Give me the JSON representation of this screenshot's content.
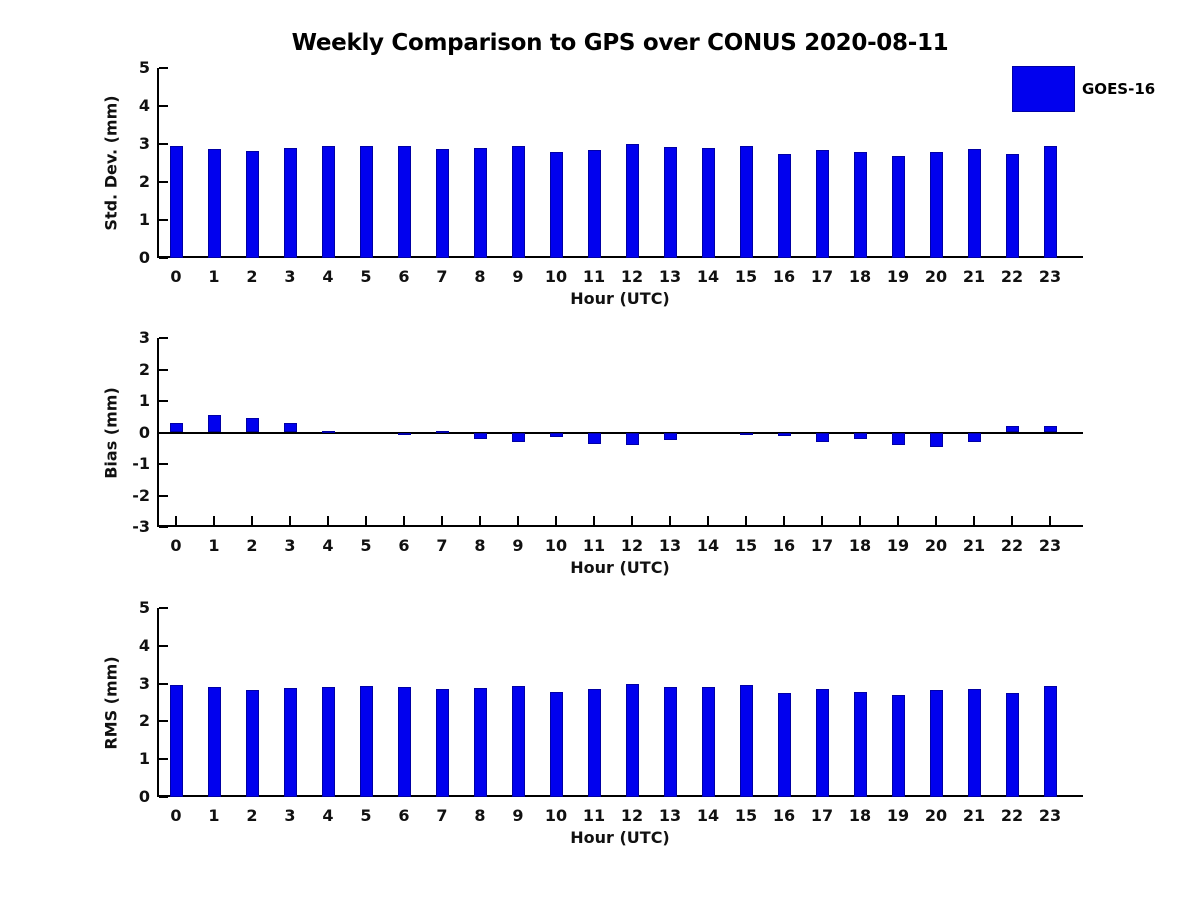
{
  "title": "Weekly Comparison to GPS over CONUS 2020-08-11",
  "legend": {
    "label": "GOES-16",
    "swatch_color": "#0101ee"
  },
  "colors": {
    "bar_fill": "#0101ee",
    "bar_edge": "#0000a5",
    "axis": "#000000",
    "text": "#111111",
    "background": "#ffffff"
  },
  "chart_data": [
    {
      "type": "bar",
      "title": "",
      "ylabel": "Std. Dev. (mm)",
      "xlabel": "Hour (UTC)",
      "series_name": "GOES-16",
      "categories": [
        "0",
        "1",
        "2",
        "3",
        "4",
        "5",
        "6",
        "7",
        "8",
        "9",
        "10",
        "11",
        "12",
        "13",
        "14",
        "15",
        "16",
        "17",
        "18",
        "19",
        "20",
        "21",
        "22",
        "23"
      ],
      "values": [
        2.95,
        2.87,
        2.81,
        2.89,
        2.94,
        2.94,
        2.94,
        2.87,
        2.89,
        2.94,
        2.79,
        2.84,
        2.99,
        2.92,
        2.89,
        2.96,
        2.73,
        2.84,
        2.79,
        2.68,
        2.79,
        2.87,
        2.73,
        2.94
      ],
      "ylim": [
        0,
        5
      ],
      "yticks": [
        0,
        1,
        2,
        3,
        4,
        5
      ],
      "grid": false,
      "legend_position": "outside-upper-right"
    },
    {
      "type": "bar",
      "title": "",
      "ylabel": "Bias (mm)",
      "xlabel": "Hour (UTC)",
      "series_name": "GOES-16",
      "categories": [
        "0",
        "1",
        "2",
        "3",
        "4",
        "5",
        "6",
        "7",
        "8",
        "9",
        "10",
        "11",
        "12",
        "13",
        "14",
        "15",
        "16",
        "17",
        "18",
        "19",
        "20",
        "21",
        "22",
        "23"
      ],
      "values": [
        0.3,
        0.55,
        0.45,
        0.3,
        0.05,
        0.0,
        -0.02,
        0.04,
        -0.2,
        -0.3,
        -0.15,
        -0.35,
        -0.4,
        -0.25,
        0.0,
        -0.05,
        -0.1,
        -0.3,
        -0.2,
        -0.4,
        -0.45,
        -0.3,
        0.2,
        0.2
      ],
      "ylim": [
        -3,
        3
      ],
      "yticks": [
        -3,
        -2,
        -1,
        0,
        1,
        2,
        3
      ],
      "grid": false,
      "legend_position": "none"
    },
    {
      "type": "bar",
      "title": "",
      "ylabel": "RMS (mm)",
      "xlabel": "Hour (UTC)",
      "series_name": "GOES-16",
      "categories": [
        "0",
        "1",
        "2",
        "3",
        "4",
        "5",
        "6",
        "7",
        "8",
        "9",
        "10",
        "11",
        "12",
        "13",
        "14",
        "15",
        "16",
        "17",
        "18",
        "19",
        "20",
        "21",
        "22",
        "23"
      ],
      "values": [
        2.95,
        2.9,
        2.83,
        2.89,
        2.91,
        2.94,
        2.91,
        2.86,
        2.89,
        2.94,
        2.78,
        2.86,
        3.0,
        2.92,
        2.9,
        2.97,
        2.74,
        2.85,
        2.79,
        2.7,
        2.82,
        2.87,
        2.74,
        2.94
      ],
      "ylim": [
        0,
        5
      ],
      "yticks": [
        0,
        1,
        2,
        3,
        4,
        5
      ],
      "grid": false,
      "legend_position": "none"
    }
  ]
}
